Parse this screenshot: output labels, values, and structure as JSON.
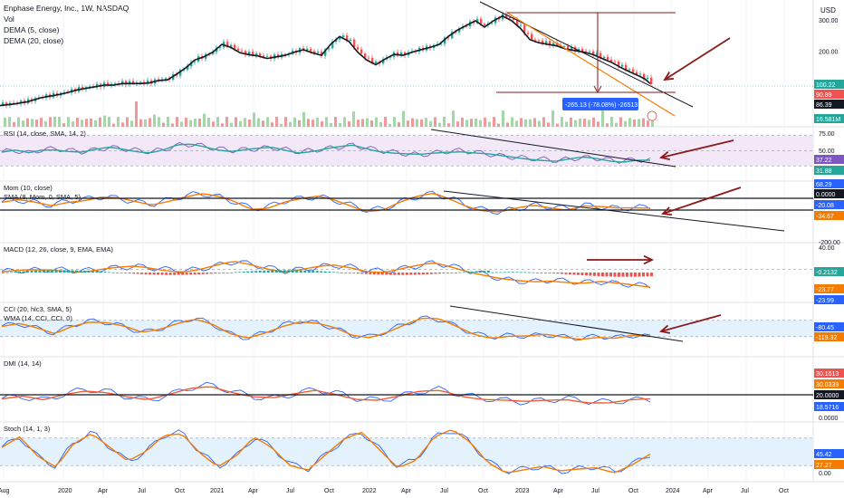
{
  "header": {
    "title": "Enphase Energy, Inc., 1W, NASDAQ",
    "indicators": [
      "Vol",
      "DEMA (5, close)",
      "DEMA (20, close)"
    ],
    "currency": "USD"
  },
  "measure_label": "-265.13 (-78.08%) -26513",
  "x_axis": {
    "labels": [
      "Aug",
      "2020",
      "Apr",
      "Jul",
      "Oct",
      "2021",
      "Apr",
      "Jul",
      "Oct",
      "2022",
      "Apr",
      "Jul",
      "Oct",
      "2023",
      "Apr",
      "Jul",
      "Oct",
      "2024",
      "Apr",
      "Jul",
      "Oct"
    ]
  },
  "colors": {
    "up": "#26a69a",
    "down": "#ef5350",
    "accent_blue": "#2962ff",
    "orange": "#f57c00",
    "trend_line": "#131722",
    "annotation": "#8b1a1a",
    "band_fill": "#f3e8f7",
    "band_blue": "#e3f2fd"
  },
  "chart_data": [
    {
      "type": "candlestick",
      "name": "price",
      "x_label": "",
      "y_label": "USD",
      "y_ticks": [
        "300.00",
        "200.00",
        "100.00"
      ],
      "y_range": [
        40,
        340
      ],
      "series": [
        {
          "name": "DEMA (5, close)",
          "color": "#131722"
        },
        {
          "name": "DEMA (20, close)",
          "color": "#131722"
        }
      ],
      "price_points": [
        [
          0,
          30
        ],
        [
          15,
          35
        ],
        [
          30,
          42
        ],
        [
          45,
          55
        ],
        [
          55,
          60
        ],
        [
          65,
          65
        ],
        [
          75,
          72
        ],
        [
          85,
          80
        ],
        [
          95,
          85
        ],
        [
          105,
          90
        ],
        [
          115,
          95
        ],
        [
          125,
          95
        ],
        [
          135,
          100
        ],
        [
          145,
          100
        ],
        [
          155,
          100
        ],
        [
          165,
          102
        ],
        [
          175,
          110
        ],
        [
          185,
          112
        ],
        [
          195,
          130
        ],
        [
          205,
          150
        ],
        [
          215,
          175
        ],
        [
          225,
          185
        ],
        [
          235,
          200
        ],
        [
          245,
          225
        ],
        [
          255,
          215
        ],
        [
          265,
          198
        ],
        [
          275,
          192
        ],
        [
          285,
          188
        ],
        [
          295,
          180
        ],
        [
          305,
          185
        ],
        [
          315,
          190
        ],
        [
          325,
          200
        ],
        [
          335,
          208
        ],
        [
          345,
          198
        ],
        [
          355,
          190
        ],
        [
          365,
          225
        ],
        [
          375,
          250
        ],
        [
          385,
          235
        ],
        [
          395,
          200
        ],
        [
          405,
          175
        ],
        [
          415,
          160
        ],
        [
          425,
          178
        ],
        [
          435,
          193
        ],
        [
          445,
          190
        ],
        [
          455,
          200
        ],
        [
          465,
          208
        ],
        [
          475,
          215
        ],
        [
          485,
          225
        ],
        [
          495,
          250
        ],
        [
          505,
          270
        ],
        [
          515,
          285
        ],
        [
          525,
          300
        ],
        [
          535,
          280
        ],
        [
          545,
          300
        ],
        [
          555,
          315
        ],
        [
          565,
          300
        ],
        [
          575,
          275
        ],
        [
          585,
          240
        ],
        [
          595,
          230
        ],
        [
          605,
          225
        ],
        [
          615,
          220
        ],
        [
          625,
          210
        ],
        [
          635,
          205
        ],
        [
          645,
          200
        ],
        [
          655,
          192
        ],
        [
          665,
          180
        ],
        [
          675,
          168
        ],
        [
          685,
          152
        ],
        [
          695,
          138
        ],
        [
          705,
          125
        ],
        [
          712,
          115
        ],
        [
          718,
          100
        ]
      ],
      "price_labels": [
        {
          "value": "100.22",
          "color": "#26a69a"
        },
        {
          "value": "90.89",
          "color": "#ef5350"
        },
        {
          "value": "86.39",
          "color": "#131722"
        },
        {
          "value": "16.581M",
          "color": "#26a69a"
        }
      ]
    },
    {
      "type": "line",
      "name": "RSI (14, close, SMA, 14, 2)",
      "y_ticks": [
        "75.00",
        "50.00",
        "25.00"
      ],
      "y_range": [
        0,
        100
      ],
      "series": [
        {
          "name": "RSI",
          "color": "#7e57c2"
        },
        {
          "name": "RSI-based MA",
          "color": "#26a69a"
        }
      ],
      "values": [
        55,
        58,
        52,
        60,
        62,
        58,
        55,
        60,
        65,
        62,
        58,
        55,
        60,
        70,
        72,
        68,
        62,
        58,
        60,
        62,
        65,
        60,
        55,
        58,
        62,
        66,
        70,
        64,
        58,
        54,
        50,
        48,
        52,
        56,
        58,
        54,
        50,
        45,
        42,
        40,
        38,
        35,
        38,
        42,
        40,
        36,
        34,
        37,
        35
      ],
      "value_labels": [
        {
          "value": "37.22",
          "color": "#7e57c2"
        },
        {
          "value": "31.88",
          "color": "#26a69a"
        }
      ]
    },
    {
      "type": "line",
      "name": "Mom (10, close)",
      "subtitle": "SMA (8, Mom, 0, SMA, 5)",
      "y_ticks": [
        "0.00",
        "-200.00"
      ],
      "y_range": [
        -200,
        100
      ],
      "series": [
        {
          "name": "Mom",
          "color": "#2962ff"
        },
        {
          "name": "SMA",
          "color": "#f57c00"
        }
      ],
      "values": [
        10,
        20,
        5,
        -10,
        15,
        25,
        40,
        30,
        10,
        -5,
        20,
        45,
        60,
        40,
        10,
        -30,
        -20,
        15,
        30,
        40,
        20,
        -10,
        -40,
        -30,
        10,
        40,
        60,
        30,
        -10,
        -40,
        -50,
        -30,
        -10,
        -20,
        -30,
        -10,
        -20,
        -30,
        -25,
        -20
      ],
      "value_labels": [
        {
          "value": "68.29",
          "color": "#2962ff"
        },
        {
          "value": "0.0000",
          "color": "#131722"
        },
        {
          "value": "-20.08",
          "color": "#2962ff"
        },
        {
          "value": "-34.67",
          "color": "#f57c00"
        }
      ]
    },
    {
      "type": "line",
      "name": "MACD (12, 26, close, 9, EMA, EMA)",
      "y_ticks": [
        "40.00"
      ],
      "y_range": [
        -40,
        40
      ],
      "series": [
        {
          "name": "MACD",
          "color": "#2962ff"
        },
        {
          "name": "Signal",
          "color": "#f57c00"
        },
        {
          "name": "Histogram",
          "color": "#26a69a"
        }
      ],
      "values": [
        2,
        3,
        4,
        5,
        4,
        3,
        6,
        8,
        10,
        8,
        5,
        3,
        6,
        12,
        18,
        14,
        8,
        3,
        5,
        9,
        12,
        9,
        4,
        2,
        6,
        11,
        16,
        11,
        4,
        -3,
        -10,
        -14,
        -15,
        -12,
        -14,
        -16,
        -15,
        -18,
        -20,
        -22
      ],
      "value_labels": [
        {
          "value": "-0.2132",
          "color": "#26a69a"
        },
        {
          "value": "-23.77",
          "color": "#f57c00"
        },
        {
          "value": "-23.99",
          "color": "#2962ff"
        }
      ]
    },
    {
      "type": "line",
      "name": "CCI (20, hlc3, SMA, 5)",
      "subtitle": "WMA (14, CCI, CCI, 0)",
      "y_ticks": [],
      "y_range": [
        -300,
        300
      ],
      "series": [
        {
          "name": "CCI",
          "color": "#2962ff"
        },
        {
          "name": "WMA",
          "color": "#f57c00"
        }
      ],
      "values": [
        50,
        80,
        20,
        -50,
        60,
        120,
        100,
        40,
        -40,
        10,
        100,
        160,
        80,
        -60,
        -120,
        -40,
        60,
        120,
        90,
        20,
        -80,
        -100,
        -20,
        80,
        160,
        140,
        40,
        -60,
        -100,
        -80,
        -90,
        -70,
        -100,
        -120,
        -90,
        -110,
        -80,
        -100
      ],
      "value_labels": [
        {
          "value": "-80.45",
          "color": "#2962ff"
        },
        {
          "value": "-119.32",
          "color": "#f57c00"
        }
      ]
    },
    {
      "type": "line",
      "name": "DMI (14, 14)",
      "y_ticks": [
        "0.0000"
      ],
      "y_range": [
        0,
        60
      ],
      "series": [
        {
          "name": "+DI",
          "color": "#2962ff"
        },
        {
          "name": "-DI",
          "color": "#f57c00"
        },
        {
          "name": "ADX",
          "color": "#ef5350"
        }
      ],
      "values": [
        20,
        22,
        18,
        25,
        30,
        28,
        22,
        18,
        24,
        32,
        35,
        28,
        22,
        20,
        25,
        30,
        26,
        20,
        18,
        22,
        28,
        30,
        24,
        20,
        18,
        16,
        18,
        20,
        17,
        16,
        18,
        19
      ],
      "value_labels": [
        {
          "value": "30.1613",
          "color": "#ef5350"
        },
        {
          "value": "30.0339",
          "color": "#f57c00"
        },
        {
          "value": "20.0000",
          "color": "#131722"
        },
        {
          "value": "18.5716",
          "color": "#2962ff"
        }
      ]
    },
    {
      "type": "line",
      "name": "Stoch (14, 1, 3)",
      "y_ticks": [
        "0.00"
      ],
      "y_range": [
        0,
        100
      ],
      "series": [
        {
          "name": "%K",
          "color": "#2962ff"
        },
        {
          "name": "%D",
          "color": "#f57c00"
        }
      ],
      "values": [
        60,
        80,
        40,
        20,
        70,
        90,
        60,
        30,
        50,
        85,
        90,
        50,
        20,
        40,
        80,
        60,
        25,
        15,
        45,
        75,
        90,
        55,
        20,
        35,
        80,
        95,
        70,
        30,
        10,
        15,
        20,
        10,
        15,
        20,
        10,
        25,
        45
      ],
      "value_labels": [
        {
          "value": "45.42",
          "color": "#2962ff"
        },
        {
          "value": "27.27",
          "color": "#f57c00"
        }
      ]
    }
  ]
}
